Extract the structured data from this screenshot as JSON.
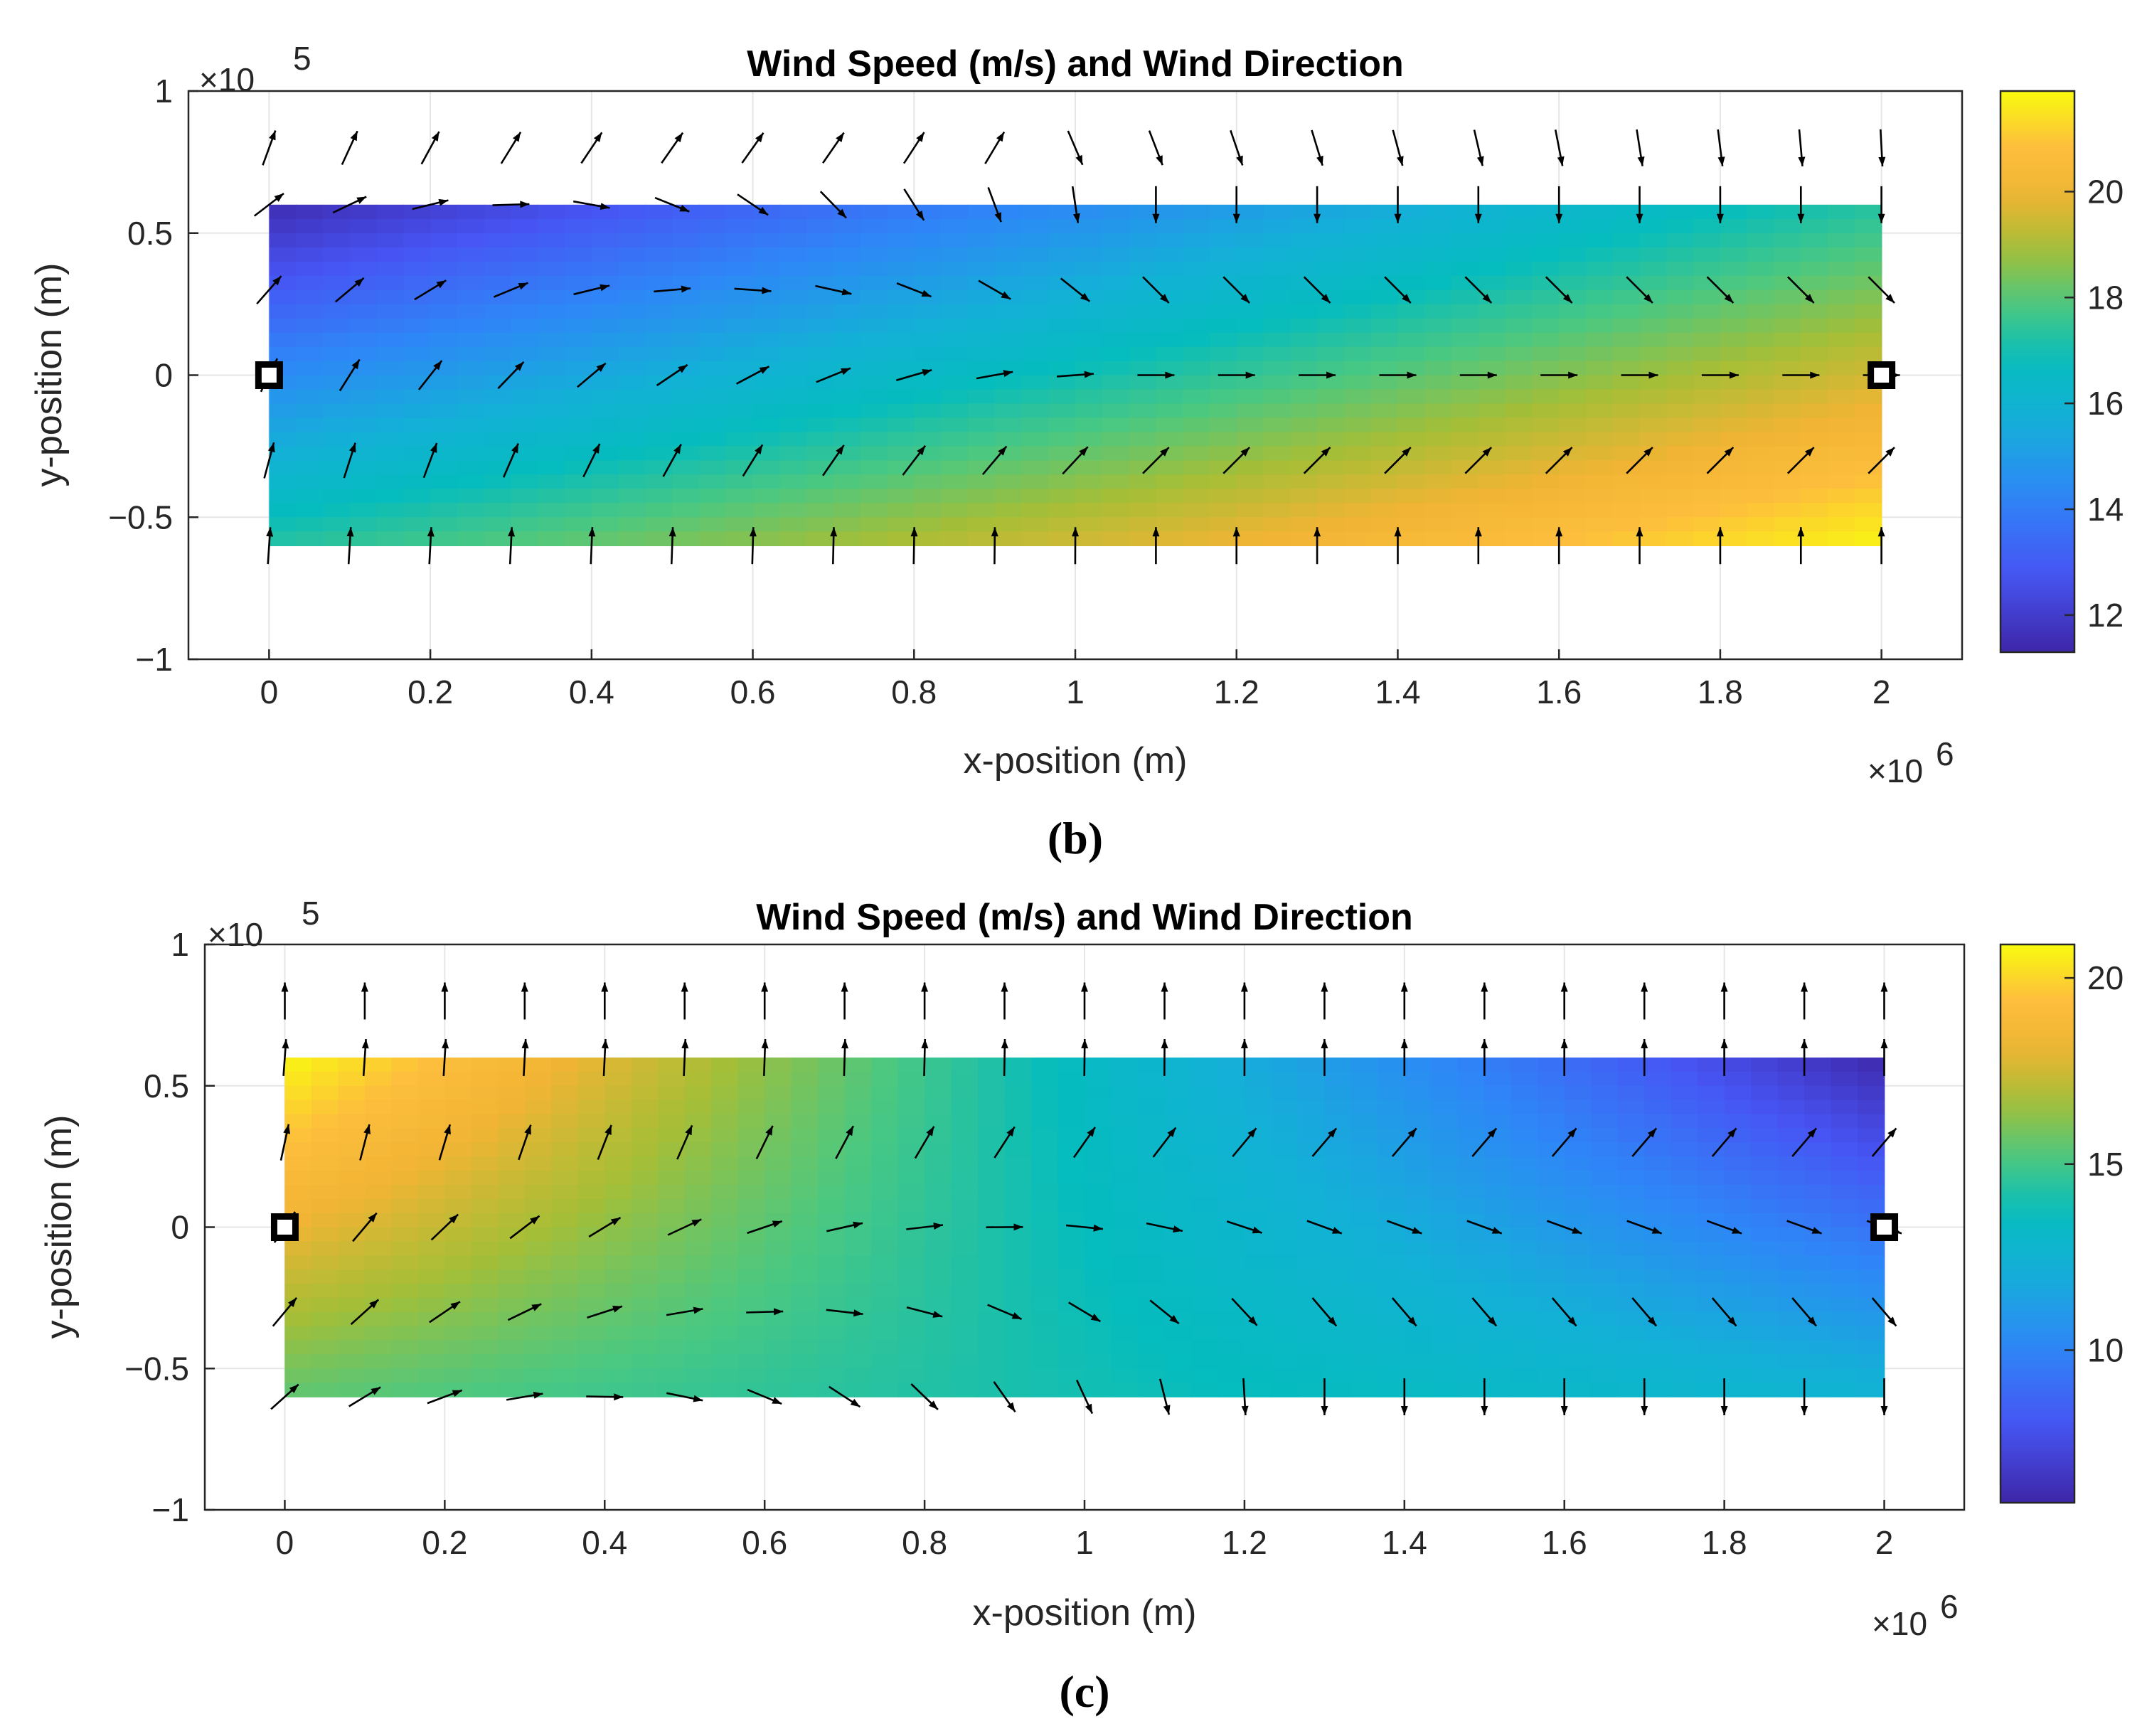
{
  "chart_data": [
    {
      "type": "quiver-heatmap",
      "panel_label": "(b)",
      "title": "Wind Speed (m/s) and Wind Direction",
      "xlabel": "x-position (m)",
      "ylabel": "y-position (m)",
      "x_exponent": "6",
      "y_exponent": "5",
      "x_multiplier": "×10",
      "y_multiplier": "×10",
      "xlim": [
        -0.1,
        2.1
      ],
      "ylim": [
        -1,
        1
      ],
      "xticks": [
        "0",
        "0.2",
        "0.4",
        "0.6",
        "0.8",
        "1",
        "1.2",
        "1.4",
        "1.6",
        "1.8",
        "2"
      ],
      "yticks": [
        "1",
        "0.5",
        "0",
        "−0.5",
        "−1"
      ],
      "ytick_values": [
        1,
        0.5,
        0,
        -0.5,
        -1
      ],
      "domain": {
        "x": [
          0,
          2
        ],
        "y": [
          -0.6,
          0.6
        ]
      },
      "markers": [
        {
          "x": 0,
          "y": 0
        },
        {
          "x": 2,
          "y": 0
        }
      ],
      "colorbar": {
        "min": 11.3,
        "max": 21.9,
        "ticks": [
          "20",
          "18",
          "16",
          "14",
          "12"
        ],
        "tick_values": [
          20,
          18,
          16,
          14,
          12
        ]
      },
      "speed_field": {
        "s00": 11.5,
        "s10": 17.3,
        "s01": 17.3,
        "s11": 21.8
      },
      "grid_x": [
        0,
        0.1,
        0.2,
        0.3,
        0.4,
        0.5,
        0.6,
        0.7,
        0.8,
        0.9,
        1.0,
        1.1,
        1.2,
        1.3,
        1.4,
        1.5,
        1.6,
        1.7,
        1.8,
        1.9,
        2.0
      ],
      "grid_y": [
        0.8,
        0.6,
        0.3,
        0,
        -0.3,
        -0.6
      ],
      "vector_pattern": "converge-to-centerline",
      "colormap": "parula"
    },
    {
      "type": "quiver-heatmap",
      "panel_label": "(c)",
      "title": "Wind Speed (m/s) and Wind Direction",
      "xlabel": "x-position (m)",
      "ylabel": "y-position (m)",
      "x_exponent": "6",
      "y_exponent": "5",
      "x_multiplier": "×10",
      "y_multiplier": "×10",
      "xlim": [
        -0.1,
        2.1
      ],
      "ylim": [
        -1,
        1
      ],
      "xticks": [
        "0",
        "0.2",
        "0.4",
        "0.6",
        "0.8",
        "1",
        "1.2",
        "1.4",
        "1.6",
        "1.8",
        "2"
      ],
      "yticks": [
        "1",
        "0.5",
        "0",
        "−0.5",
        "−1"
      ],
      "ytick_values": [
        1,
        0.5,
        0,
        -0.5,
        -1
      ],
      "domain": {
        "x": [
          0,
          2
        ],
        "y": [
          -0.6,
          0.6
        ]
      },
      "markers": [
        {
          "x": 0,
          "y": 0
        },
        {
          "x": 2,
          "y": 0
        }
      ],
      "colorbar": {
        "min": 5.9,
        "max": 20.9,
        "ticks": [
          "20",
          "15",
          "10"
        ],
        "tick_values": [
          20,
          15,
          10
        ]
      },
      "speed_field": {
        "s00": 20.8,
        "s10": 6.0,
        "s01": 15.5,
        "s11": 12.5
      },
      "grid_x": [
        0,
        0.1,
        0.2,
        0.3,
        0.4,
        0.5,
        0.6,
        0.7,
        0.8,
        0.9,
        1.0,
        1.1,
        1.2,
        1.3,
        1.4,
        1.5,
        1.6,
        1.7,
        1.8,
        1.9,
        2.0
      ],
      "grid_y": [
        0.8,
        0.6,
        0.3,
        0,
        -0.3,
        -0.6
      ],
      "vector_pattern": "diverge-from-centerline",
      "colormap": "parula"
    }
  ]
}
